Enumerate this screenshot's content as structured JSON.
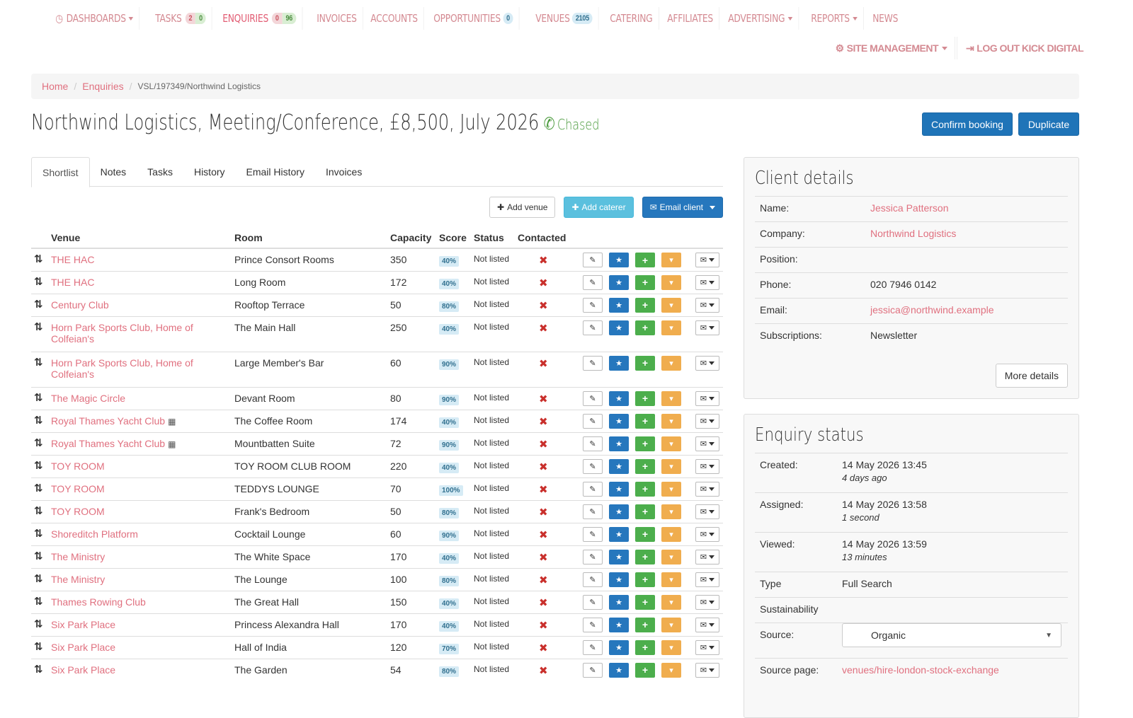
{
  "nav": {
    "items": [
      {
        "label": "Dashboards",
        "caret": true
      },
      {
        "label": "Tasks",
        "badges": [
          "2",
          "0"
        ]
      },
      {
        "label": "Enquiries",
        "badges": [
          "0",
          "96"
        ],
        "active": true
      },
      {
        "label": "Invoices"
      },
      {
        "label": "Accounts"
      },
      {
        "label": "Opportunities",
        "badge": "0"
      },
      {
        "label": "Venues",
        "badge": "2105"
      },
      {
        "label": "Catering"
      },
      {
        "label": "Affiliates"
      },
      {
        "label": "Advertising",
        "caret": true
      },
      {
        "label": "Reports",
        "caret": true
      },
      {
        "label": "News"
      }
    ],
    "site_management": "Site Management",
    "logout": "Log Out Kick Digital"
  },
  "breadcrumb": {
    "home": "Home",
    "enquiries": "Enquiries",
    "current": "VSL/197349/Northwind Logistics"
  },
  "title": {
    "text": "Northwind Logistics, Meeting/Conference, £8,500, July 2026",
    "status": "Chased"
  },
  "buttons": {
    "confirm": "Confirm booking",
    "duplicate": "Duplicate",
    "add_venue": "Add venue",
    "add_caterer": "Add caterer",
    "email_client": "Email client",
    "more_details": "More details"
  },
  "tabs": [
    "Shortlist",
    "Notes",
    "Tasks",
    "History",
    "Email History",
    "Invoices"
  ],
  "table": {
    "headers": {
      "venue": "Venue",
      "room": "Room",
      "capacity": "Capacity",
      "score": "Score",
      "status": "Status",
      "contacted": "Contacted"
    },
    "rows": [
      {
        "venue": "THE HAC",
        "room": "Prince Consort Rooms",
        "capacity": "350",
        "score": "40%",
        "status": "Not listed"
      },
      {
        "venue": "THE HAC",
        "room": "Long Room",
        "capacity": "172",
        "score": "40%",
        "status": "Not listed"
      },
      {
        "venue": "Century Club",
        "room": "Rooftop Terrace",
        "capacity": "50",
        "score": "80%",
        "status": "Not listed"
      },
      {
        "venue": "Horn Park Sports Club, Home of Colfeian's",
        "room": "The Main Hall",
        "capacity": "250",
        "score": "40%",
        "status": "Not listed",
        "tall": true
      },
      {
        "venue": "Horn Park Sports Club, Home of Colfeian's",
        "room": "Large Member's Bar",
        "capacity": "60",
        "score": "90%",
        "status": "Not listed",
        "tall": true
      },
      {
        "venue": "The Magic Circle",
        "room": "Devant Room",
        "capacity": "80",
        "score": "90%",
        "status": "Not listed"
      },
      {
        "venue": "Royal Thames Yacht Club",
        "room": "The Coffee Room",
        "capacity": "174",
        "score": "40%",
        "status": "Not listed",
        "calendar": true
      },
      {
        "venue": "Royal Thames Yacht Club",
        "room": "Mountbatten Suite",
        "capacity": "72",
        "score": "90%",
        "status": "Not listed",
        "calendar": true
      },
      {
        "venue": "TOY ROOM",
        "room": "TOY ROOM CLUB ROOM",
        "capacity": "220",
        "score": "40%",
        "status": "Not listed"
      },
      {
        "venue": "TOY ROOM",
        "room": "TEDDYS LOUNGE",
        "capacity": "70",
        "score": "100%",
        "status": "Not listed"
      },
      {
        "venue": "TOY ROOM",
        "room": "Frank's Bedroom",
        "capacity": "50",
        "score": "80%",
        "status": "Not listed"
      },
      {
        "venue": "Shoreditch Platform",
        "room": "Cocktail Lounge",
        "capacity": "60",
        "score": "90%",
        "status": "Not listed"
      },
      {
        "venue": "The Ministry",
        "room": "The White Space",
        "capacity": "170",
        "score": "40%",
        "status": "Not listed"
      },
      {
        "venue": "The Ministry",
        "room": "The Lounge",
        "capacity": "100",
        "score": "80%",
        "status": "Not listed"
      },
      {
        "venue": "Thames Rowing Club",
        "room": "The Great Hall",
        "capacity": "150",
        "score": "40%",
        "status": "Not listed"
      },
      {
        "venue": "Six Park Place",
        "room": "Princess Alexandra Hall",
        "capacity": "170",
        "score": "40%",
        "status": "Not listed"
      },
      {
        "venue": "Six Park Place",
        "room": "Hall of India",
        "capacity": "120",
        "score": "70%",
        "status": "Not listed"
      },
      {
        "venue": "Six Park Place",
        "room": "The Garden",
        "capacity": "54",
        "score": "80%",
        "status": "Not listed"
      }
    ]
  },
  "client": {
    "heading": "Client details",
    "labels": {
      "name": "Name:",
      "company": "Company:",
      "position": "Position:",
      "phone": "Phone:",
      "email": "Email:",
      "subscriptions": "Subscriptions:"
    },
    "name": "Jessica Patterson",
    "company": "Northwind Logistics",
    "position": "",
    "phone": "020 7946 0142",
    "email": "jessica@northwind.example",
    "subscriptions": "Newsletter"
  },
  "enquiry_status": {
    "heading": "Enquiry status",
    "labels": {
      "created": "Created:",
      "assigned": "Assigned:",
      "viewed": "Viewed:",
      "type": "Type",
      "sustainability": "Sustainability",
      "source": "Source:",
      "source_page": "Source page:"
    },
    "created": "14 May 2026 13:45",
    "created_ago": "4 days ago",
    "assigned": "14 May 2026 13:58",
    "assigned_ago": "1 second",
    "viewed": "14 May 2026 13:59",
    "viewed_ago": "13 minutes",
    "type": "Full Search",
    "source": "Organic",
    "source_page": "venues/hire-london-stock-exchange"
  },
  "colors": {
    "link": "#e0707f",
    "primary": "#1f74b8",
    "success": "#4cae4c",
    "warning": "#f0ad4e",
    "info": "#5bc0de"
  }
}
